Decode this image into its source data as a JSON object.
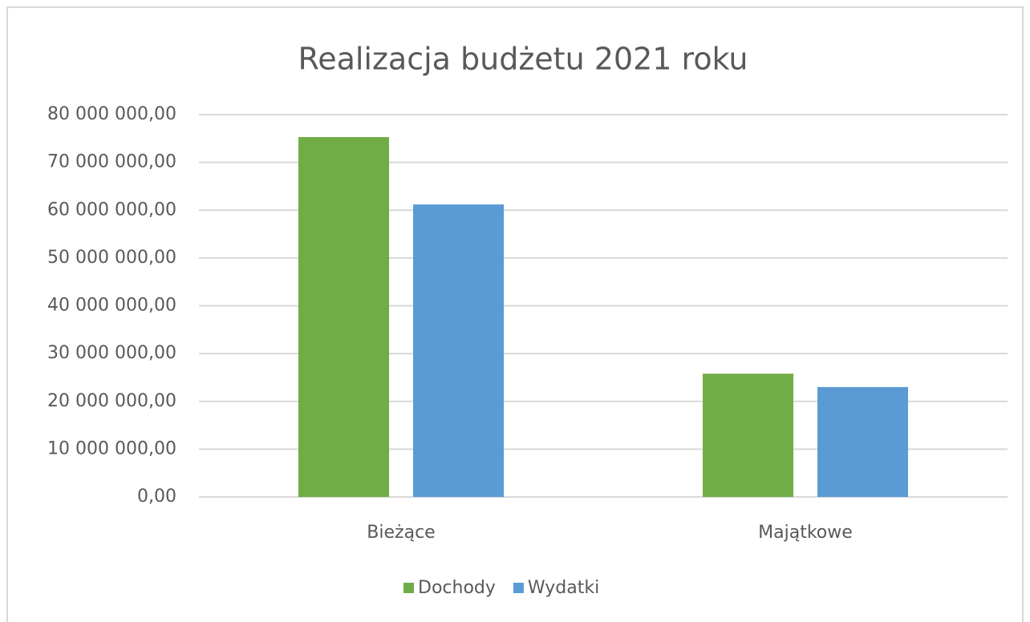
{
  "chart_data": {
    "type": "bar",
    "title": "Realizacja budżetu 2021 roku",
    "categories": [
      "Bieżące",
      "Majątkowe"
    ],
    "series": [
      {
        "name": "Dochody",
        "color": "#70ad47",
        "values": [
          75300000,
          25800000
        ]
      },
      {
        "name": "Wydatki",
        "color": "#5b9bd5",
        "values": [
          61200000,
          23000000
        ]
      }
    ],
    "ylim": [
      0,
      80000000
    ],
    "yticks": [
      {
        "value": 0,
        "label": "0,00"
      },
      {
        "value": 10000000,
        "label": "10 000 000,00"
      },
      {
        "value": 20000000,
        "label": "20 000 000,00"
      },
      {
        "value": 30000000,
        "label": "30 000 000,00"
      },
      {
        "value": 40000000,
        "label": "40 000 000,00"
      },
      {
        "value": 50000000,
        "label": "50 000 000,00"
      },
      {
        "value": 60000000,
        "label": "60 000 000,00"
      },
      {
        "value": 70000000,
        "label": "70 000 000,00"
      },
      {
        "value": 80000000,
        "label": "80 000 000,00"
      }
    ],
    "grid": true,
    "legend": "bottom"
  }
}
